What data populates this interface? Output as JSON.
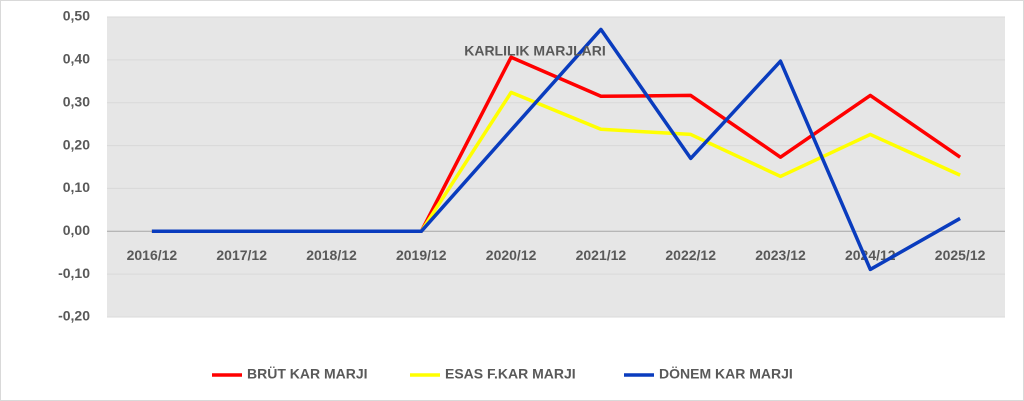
{
  "chart_data": {
    "type": "line",
    "title": "KARLILIK MARJLARI",
    "categories": [
      "2016/12",
      "2017/12",
      "2018/12",
      "2019/12",
      "2020/12",
      "2021/12",
      "2022/12",
      "2023/12",
      "2024/12",
      "2025/12"
    ],
    "series": [
      {
        "name": "BRÜT KAR MARJI",
        "color": "#ff0000",
        "values": [
          0,
          0,
          0,
          0,
          0.406,
          0.315,
          0.317,
          0.173,
          0.317,
          0.173
        ]
      },
      {
        "name": "ESAS F.KAR MARJI",
        "color": "#ffff00",
        "values": [
          0,
          0,
          0,
          0,
          0.324,
          0.238,
          0.226,
          0.128,
          0.226,
          0.131
        ]
      },
      {
        "name": "DÖNEM KAR MARJI",
        "color": "#0a3cbe",
        "values": [
          0,
          0,
          0,
          0,
          0.236,
          0.471,
          0.17,
          0.397,
          -0.089,
          0.03
        ]
      }
    ],
    "ylim": [
      -0.2,
      0.5
    ],
    "yticks": [
      {
        "value": -0.2,
        "label": "-0,20"
      },
      {
        "value": -0.1,
        "label": "-0,10"
      },
      {
        "value": 0,
        "label": "0,00"
      },
      {
        "value": 0.1,
        "label": "0,10"
      },
      {
        "value": 0.2,
        "label": "0,20"
      },
      {
        "value": 0.3,
        "label": "0,30"
      },
      {
        "value": 0.4,
        "label": "0,40"
      },
      {
        "value": 0.5,
        "label": "0,50"
      }
    ],
    "grid": true,
    "legend": "bottom"
  }
}
